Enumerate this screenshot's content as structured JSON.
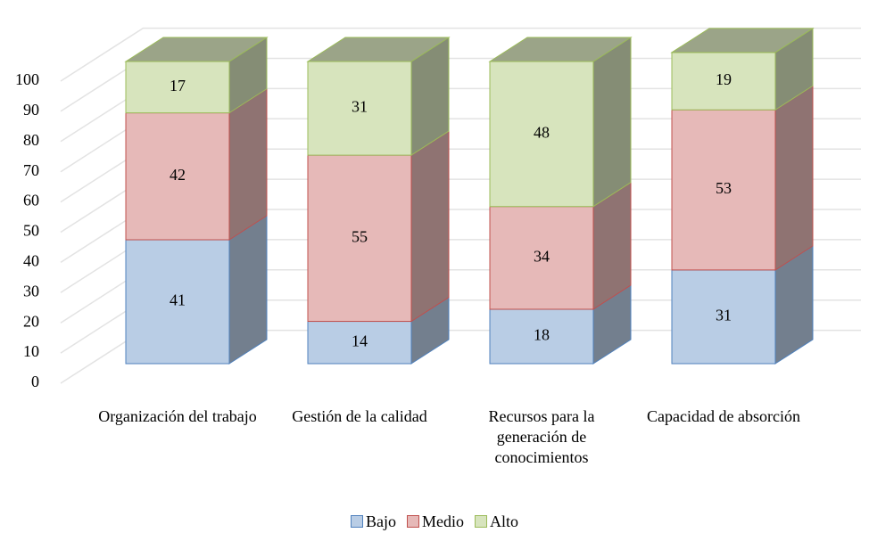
{
  "chart_data": {
    "type": "bar3d_stacked",
    "categories": [
      "Organización del trabajo",
      "Gestión de la calidad",
      "Recursos para la generación de conocimientos",
      "Capacidad de absorción"
    ],
    "series": [
      {
        "name": "Bajo",
        "color": "#b9cde5",
        "values": [
          41,
          14,
          18,
          31
        ]
      },
      {
        "name": "Medio",
        "color": "#e6b9b8",
        "values": [
          42,
          55,
          34,
          53
        ]
      },
      {
        "name": "Alto",
        "color": "#d7e4bd",
        "values": [
          17,
          31,
          48,
          19
        ]
      }
    ],
    "ylim": [
      0,
      100
    ],
    "yticks": [
      0,
      10,
      20,
      30,
      40,
      50,
      60,
      70,
      80,
      90,
      100
    ],
    "grid": true,
    "legend": "bottom"
  }
}
